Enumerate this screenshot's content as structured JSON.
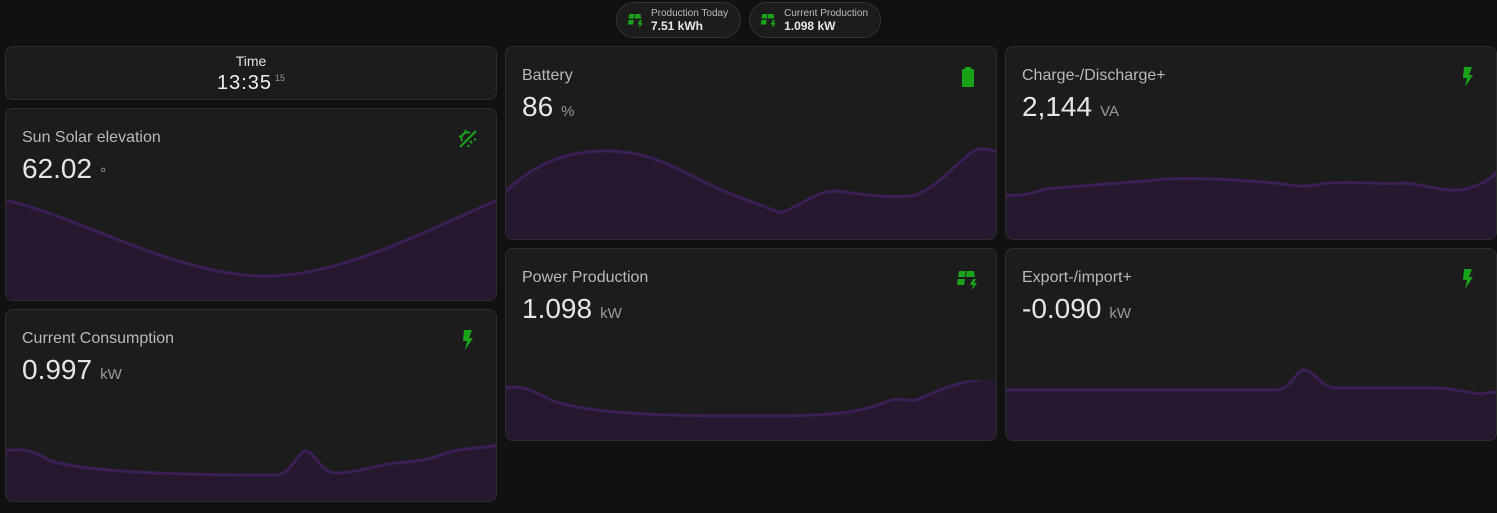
{
  "chips": [
    {
      "label": "Production Today",
      "value": "7.51 kWh",
      "icon": "solar-power-icon"
    },
    {
      "label": "Current Production",
      "value": "1.098 kW",
      "icon": "solar-power-icon"
    }
  ],
  "time": {
    "label": "Time",
    "hm": "13:35",
    "sec": "15"
  },
  "cards": {
    "sun": {
      "name": "Sun Solar elevation",
      "value": "62.02",
      "unit": "°",
      "icon": "weather-sunset-icon"
    },
    "consumption": {
      "name": "Current Consumption",
      "value": "0.997",
      "unit": "kW",
      "icon": "flash-icon"
    },
    "battery": {
      "name": "Battery",
      "value": "86",
      "unit": "%",
      "icon": "battery-icon"
    },
    "production": {
      "name": "Power Production",
      "value": "1.098",
      "unit": "kW",
      "icon": "solar-power-icon"
    },
    "charge": {
      "name": "Charge-/Discharge+",
      "value": "2,144",
      "unit": "VA",
      "icon": "flash-icon"
    },
    "export": {
      "name": "Export-/import+",
      "value": "-0.090",
      "unit": "kW",
      "icon": "flash-icon"
    }
  },
  "colors": {
    "accent": "#1aa31a",
    "graph_line": "#3b1f55",
    "graph_fill": "#26192f"
  }
}
